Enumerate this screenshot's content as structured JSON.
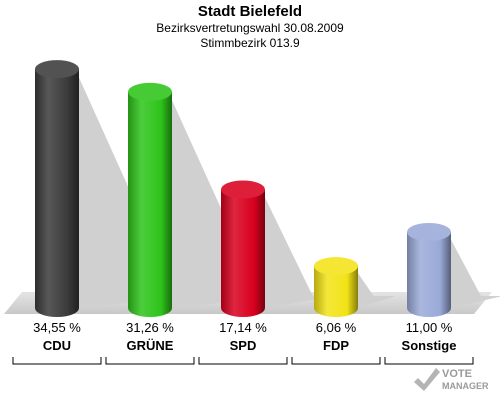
{
  "header": {
    "title": "Stadt Bielefeld",
    "subtitle": "Bezirksvertretungswahl 30.08.2009",
    "district": "Stimmbezirk 013.9"
  },
  "brand": {
    "line1": "VOTE",
    "line2": "MANAGER"
  },
  "chart_data": {
    "type": "bar",
    "title": "Stadt Bielefeld",
    "subtitle": "Bezirksvertretungswahl 30.08.2009 / Stimmbezirk 013.9",
    "categories": [
      "CDU",
      "GRÜNE",
      "SPD",
      "FDP",
      "Sonstige"
    ],
    "values": [
      34.55,
      31.26,
      17.14,
      6.06,
      11.0
    ],
    "value_labels": [
      "34,55 %",
      "31,26 %",
      "17,14 %",
      "6,06 %",
      "11,00 %"
    ],
    "colors": [
      "#3a3a3a",
      "#2ec41a",
      "#d8001e",
      "#f2e316",
      "#9aaad8"
    ],
    "ylim": [
      0,
      35
    ],
    "grid": false,
    "legend": "none"
  }
}
